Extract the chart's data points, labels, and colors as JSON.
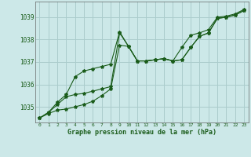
{
  "xlabel": "Graphe pression niveau de la mer (hPa)",
  "background_color": "#cce8e8",
  "grid_color": "#aacccc",
  "line_color": "#1a5c1a",
  "ylim": [
    1034.3,
    1039.7
  ],
  "xlim": [
    -0.5,
    23.5
  ],
  "yticks": [
    1035,
    1036,
    1037,
    1038,
    1039
  ],
  "xticks": [
    0,
    1,
    2,
    3,
    4,
    5,
    6,
    7,
    8,
    9,
    10,
    11,
    12,
    13,
    14,
    15,
    16,
    17,
    18,
    19,
    20,
    21,
    22,
    23
  ],
  "series1": [
    1034.5,
    1034.7,
    1034.85,
    1034.9,
    1035.0,
    1035.1,
    1035.25,
    1035.5,
    1035.8,
    1037.75,
    1037.7,
    1037.05,
    1037.05,
    1037.1,
    1037.15,
    1037.05,
    1037.1,
    1037.65,
    1038.15,
    1038.3,
    1038.95,
    1039.0,
    1039.1,
    1039.3
  ],
  "series2": [
    1034.5,
    1034.75,
    1035.1,
    1035.45,
    1035.55,
    1035.6,
    1035.7,
    1035.8,
    1035.9,
    1038.3,
    1037.7,
    1037.05,
    1037.05,
    1037.1,
    1037.15,
    1037.05,
    1037.1,
    1037.65,
    1038.15,
    1038.3,
    1038.95,
    1039.0,
    1039.1,
    1039.3
  ],
  "series3": [
    1034.5,
    1034.75,
    1035.2,
    1035.55,
    1036.35,
    1036.6,
    1036.7,
    1036.8,
    1036.9,
    1038.35,
    1037.7,
    1037.05,
    1037.05,
    1037.1,
    1037.15,
    1037.05,
    1037.65,
    1038.2,
    1038.3,
    1038.45,
    1039.0,
    1039.05,
    1039.15,
    1039.35
  ]
}
